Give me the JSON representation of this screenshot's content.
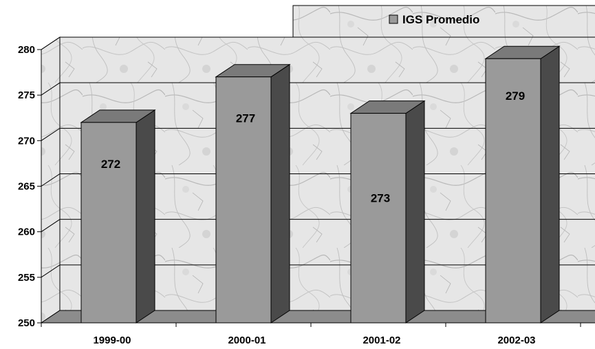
{
  "chart_data": {
    "type": "bar",
    "categories": [
      "1999-00",
      "2000-01",
      "2001-02",
      "2002-03"
    ],
    "series": [
      {
        "name": "IGS Promedio",
        "values": [
          272,
          277,
          273,
          279
        ]
      }
    ],
    "data_labels": [
      "272",
      "277",
      "273",
      "279"
    ],
    "ylim": [
      250,
      280
    ],
    "yticks": [
      250,
      255,
      260,
      265,
      270,
      275,
      280
    ],
    "grid": true,
    "legend": "top-right",
    "colors": {
      "bar_front": "#9a9a9a",
      "bar_top": "#7a7a7a",
      "bar_side": "#4a4a4a",
      "floor": "#8c8c8c",
      "wall": "#dcdcdc"
    }
  }
}
